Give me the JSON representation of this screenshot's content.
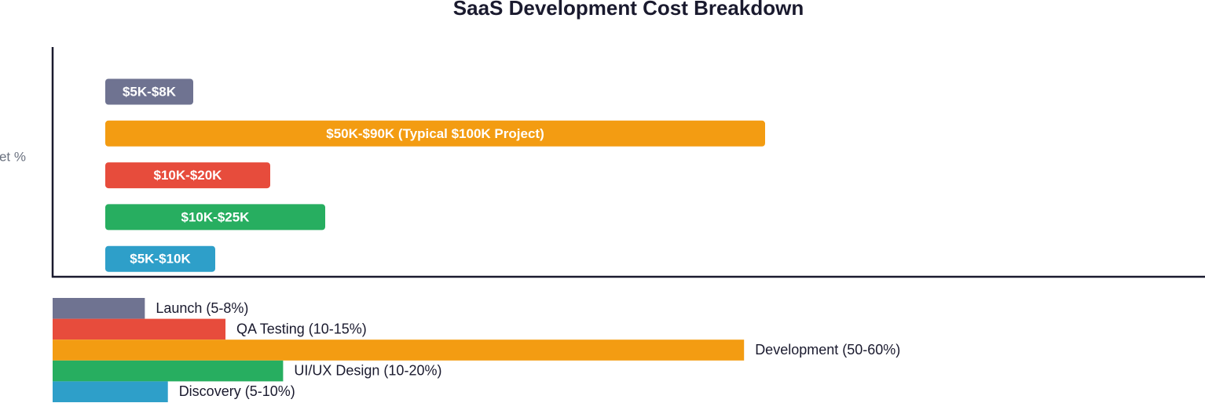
{
  "chart_data": [
    {
      "type": "bar",
      "orientation": "horizontal",
      "title": "SaaS Development Cost Breakdown",
      "y_label": "et %",
      "categories": [
        null,
        null,
        null,
        null,
        null
      ],
      "values": [
        8,
        60,
        15,
        20,
        10
      ],
      "value_labels": [
        "$5K-$8K",
        "$50K-$90K (Typical $100K Project)",
        "$10K-$20K",
        "$10K-$25K",
        "$5K-$10K"
      ],
      "colors": [
        "#6f7391",
        "#f39c12",
        "#e74c3c",
        "#27ae60",
        "#2e9fc9"
      ],
      "xlim": [
        0,
        100
      ]
    },
    {
      "type": "bar",
      "orientation": "horizontal",
      "categories": [
        "Launch (5-8%)",
        "QA Testing (10-15%)",
        "Development (50-60%)",
        "UI/UX Design (10-20%)",
        "Discovery (5-10%)"
      ],
      "values": [
        8,
        15,
        60,
        20,
        10
      ],
      "colors": [
        "#6f7391",
        "#e74c3c",
        "#f39c12",
        "#27ae60",
        "#2e9fc9"
      ],
      "xlim": [
        0,
        100
      ]
    }
  ]
}
